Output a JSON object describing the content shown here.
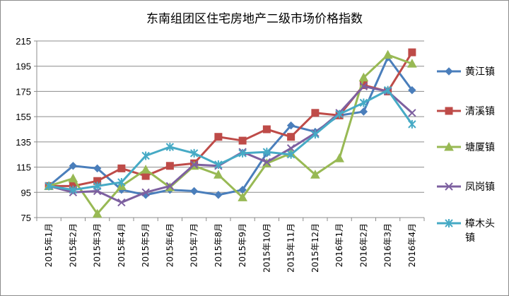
{
  "chart_data": {
    "type": "line",
    "title": "东南组团区住宅房地产二级市场价格指数",
    "xlabel": "",
    "ylabel": "",
    "ylim": [
      75,
      215
    ],
    "yticks": [
      75,
      95,
      115,
      135,
      155,
      175,
      195,
      215
    ],
    "grid": "horizontal",
    "legend_position": "right",
    "categories": [
      "2015年1月",
      "2015年2月",
      "2015年3月",
      "2015年4月",
      "2015年5月",
      "2015年6月",
      "2015年7月",
      "2015年8月",
      "2015年9月",
      "2015年10月",
      "2015年11月",
      "2015年12月",
      "2016年1月",
      "2016年2月",
      "2016年3月",
      "2016年4月"
    ],
    "series": [
      {
        "name": "黄江镇",
        "color": "#4a7ebb",
        "marker": "diamond",
        "values": [
          100,
          116,
          114,
          97,
          93,
          97,
          96,
          93,
          97,
          126,
          148,
          143,
          156,
          159,
          202,
          176
        ]
      },
      {
        "name": "清溪镇",
        "color": "#be4b48",
        "marker": "square",
        "values": [
          100,
          100,
          104,
          114,
          108,
          116,
          118,
          139,
          136,
          145,
          139,
          158,
          156,
          180,
          175,
          206
        ]
      },
      {
        "name": "塘厦镇",
        "color": "#98b954",
        "marker": "triangle",
        "values": [
          100,
          106,
          78,
          100,
          113,
          99,
          116,
          109,
          91,
          118,
          126,
          109,
          122,
          186,
          204,
          197
        ]
      },
      {
        "name": "凤岗镇",
        "color": "#7d60a0",
        "marker": "x",
        "values": [
          100,
          95,
          96,
          87,
          95,
          100,
          117,
          116,
          127,
          119,
          130,
          142,
          158,
          179,
          175,
          158
        ]
      },
      {
        "name": "樟木头镇",
        "color": "#46aac5",
        "marker": "star",
        "values": [
          100,
          97,
          100,
          103,
          124,
          131,
          126,
          117,
          126,
          127,
          125,
          141,
          157,
          166,
          176,
          149
        ]
      }
    ]
  }
}
